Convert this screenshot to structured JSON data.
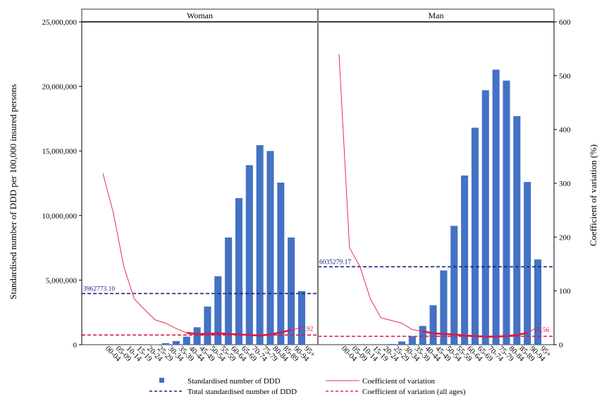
{
  "chart_data": {
    "type": "bar",
    "categories": [
      "00-04",
      "05-09",
      "10-14",
      "15-19",
      "20-24",
      "25-29",
      "30-34",
      "35-39",
      "40-44",
      "45-49",
      "50-54",
      "55-59",
      "60-64",
      "65-69",
      "70-74",
      "75-79",
      "80-84",
      "85-89",
      "90-94",
      "95+"
    ],
    "ylabel": "Standardised number of DDD per 100,000 insured persons",
    "y2label": "Coefficient of variation (%)",
    "ylim": [
      0,
      25000000
    ],
    "y2lim": [
      0,
      600
    ],
    "yticks": [
      "0",
      "5,000,000",
      "10,000,000",
      "15,000,000",
      "20,000,000",
      "25,000,000"
    ],
    "y2ticks": [
      "0",
      "100",
      "200",
      "300",
      "400",
      "500",
      "600"
    ],
    "panels": [
      {
        "title": "Woman",
        "ddd": [
          0,
          0,
          0,
          0,
          0,
          30000,
          120000,
          280000,
          620000,
          1350000,
          2950000,
          5300000,
          8300000,
          11350000,
          13900000,
          15450000,
          15000000,
          12550000,
          8300000,
          4150000
        ],
        "cv": [
          318,
          245,
          145,
          85,
          65,
          46,
          40,
          30,
          22,
          20,
          20,
          21,
          20,
          19,
          18,
          17,
          19,
          23,
          27,
          32
        ],
        "total_ddd": 3962773.1,
        "total_ddd_label": "3962773.10",
        "cv_all": 17.92,
        "cv_all_label": "17.92"
      },
      {
        "title": "Man",
        "ddd": [
          0,
          0,
          0,
          0,
          0,
          50000,
          250000,
          650000,
          1450000,
          3050000,
          5750000,
          9200000,
          13100000,
          16800000,
          19700000,
          21300000,
          20450000,
          17700000,
          12600000,
          6600000
        ],
        "cv": [
          540,
          180,
          145,
          85,
          50,
          45,
          40,
          28,
          25,
          21,
          20,
          19,
          17,
          16,
          15,
          15,
          16,
          18,
          22,
          33
        ],
        "total_ddd": 6035279.17,
        "total_ddd_label": "6035279.17",
        "cv_all": 15.56,
        "cv_all_label": "15.56"
      }
    ],
    "legend": [
      {
        "label": "Standardised number of DDD",
        "kind": "square",
        "color": "#4472c4"
      },
      {
        "label": "Coefficient of variation",
        "kind": "line",
        "color": "#e0314b"
      },
      {
        "label": "Total standardised number of DDD",
        "kind": "dash",
        "color": "#1f2a7a"
      },
      {
        "label": "Coefficient of variation (all ages)",
        "kind": "dash",
        "color": "#e0314b"
      }
    ],
    "colors": {
      "bar": "#4472c4",
      "cv_line": "#e0314b",
      "total_line": "#1a237e",
      "cv_all_line": "#d81b46"
    },
    "legend_position": "bottom",
    "grid": false
  }
}
